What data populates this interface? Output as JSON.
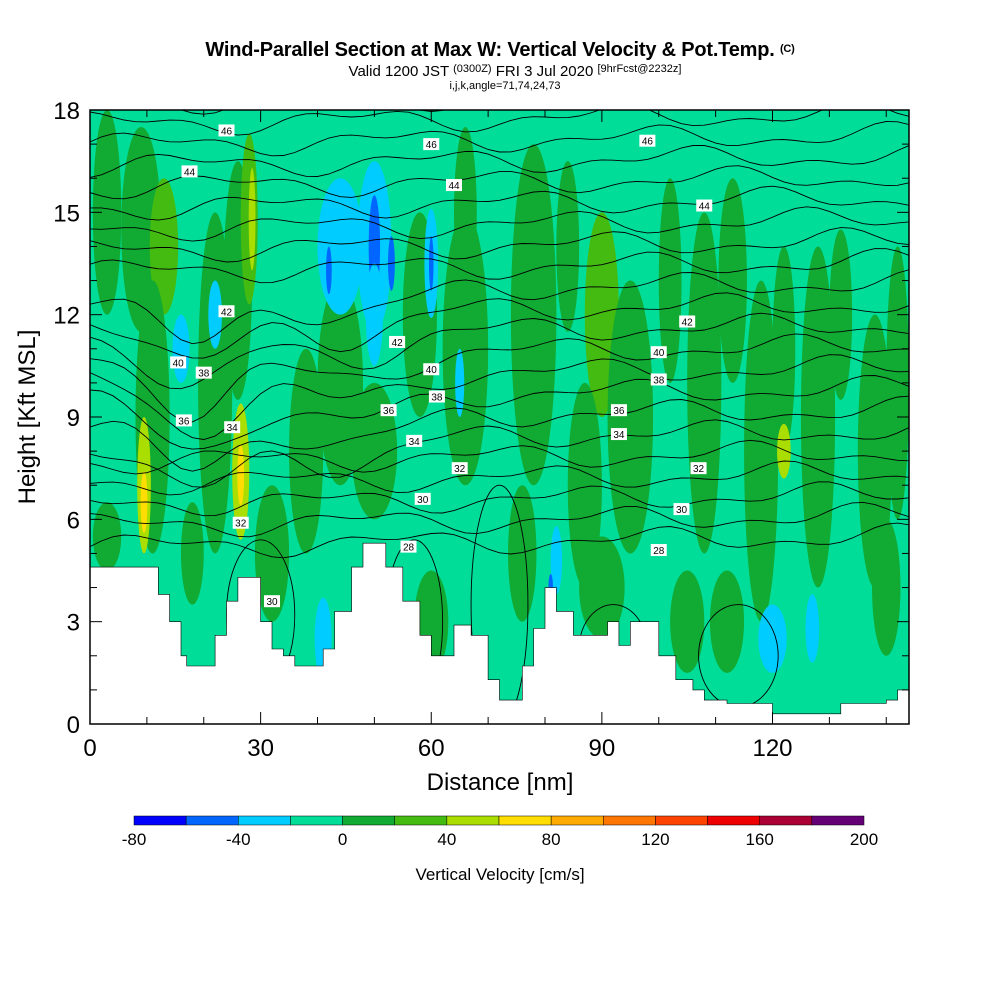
{
  "title": {
    "main": "Wind-Parallel Section at Max W: Vertical Velocity & Pot.Temp.",
    "copyright": "(C)",
    "valid_pre": "Valid 1200 JST",
    "valid_utc": "(0300Z)",
    "valid_date": "FRI 3 Jul 2020",
    "forecast": "[9hrFcst@2232z]",
    "params": "i,j,k,angle=71,74,24,73"
  },
  "chart_data": {
    "type": "heatmap",
    "xlabel": "Distance [nm]",
    "ylabel": "Height [Kft MSL]",
    "xlim": [
      0,
      144
    ],
    "ylim": [
      0,
      18
    ],
    "x_ticks": [
      0,
      30,
      60,
      90,
      120
    ],
    "y_ticks": [
      0,
      3,
      6,
      9,
      12,
      15,
      18
    ],
    "grid": false,
    "colorbar": {
      "label": "Vertical Velocity [cm/s]",
      "min": -80,
      "max": 200,
      "step": 20,
      "tick_labels": [
        -80,
        -40,
        0,
        40,
        80,
        120,
        160,
        200
      ],
      "colors": [
        "#0000ff",
        "#0066ff",
        "#00ccff",
        "#00dd99",
        "#11aa33",
        "#44bb11",
        "#aadd00",
        "#ffdd00",
        "#ffaa00",
        "#ff7700",
        "#ff4400",
        "#ee0000",
        "#aa0033",
        "#660077"
      ]
    },
    "terrain_kft": [
      [
        0,
        4.6
      ],
      [
        10,
        4.6
      ],
      [
        12,
        3.8
      ],
      [
        14,
        3.0
      ],
      [
        16,
        2.0
      ],
      [
        17,
        1.7
      ],
      [
        20,
        1.7
      ],
      [
        22,
        2.6
      ],
      [
        24,
        3.6
      ],
      [
        26,
        4.3
      ],
      [
        28,
        4.3
      ],
      [
        30,
        3.0
      ],
      [
        32,
        2.2
      ],
      [
        34,
        2.0
      ],
      [
        36,
        1.7
      ],
      [
        38,
        1.7
      ],
      [
        41,
        2.2
      ],
      [
        43,
        3.3
      ],
      [
        46,
        4.6
      ],
      [
        48,
        5.3
      ],
      [
        50,
        5.3
      ],
      [
        52,
        4.6
      ],
      [
        55,
        3.6
      ],
      [
        58,
        2.6
      ],
      [
        60,
        2.0
      ],
      [
        62,
        2.0
      ],
      [
        64,
        2.9
      ],
      [
        67,
        2.6
      ],
      [
        70,
        1.3
      ],
      [
        72,
        0.7
      ],
      [
        74,
        0.7
      ],
      [
        76,
        1.7
      ],
      [
        78,
        2.8
      ],
      [
        80,
        4.0
      ],
      [
        82,
        3.3
      ],
      [
        85,
        2.6
      ],
      [
        88,
        2.6
      ],
      [
        91,
        3.0
      ],
      [
        93,
        2.3
      ],
      [
        95,
        3.0
      ],
      [
        98,
        3.0
      ],
      [
        100,
        2.0
      ],
      [
        103,
        1.3
      ],
      [
        106,
        1.0
      ],
      [
        108,
        0.7
      ],
      [
        112,
        0.6
      ],
      [
        118,
        0.6
      ],
      [
        120,
        0.3
      ],
      [
        130,
        0.3
      ],
      [
        132,
        0.6
      ],
      [
        140,
        0.7
      ],
      [
        142,
        1.0
      ],
      [
        144,
        1.0
      ]
    ],
    "contours": {
      "name": "Pot.Temp.",
      "labels": [
        {
          "text": "46",
          "x": 24,
          "y": 17.4
        },
        {
          "text": "46",
          "x": 60,
          "y": 17.0
        },
        {
          "text": "46",
          "x": 98,
          "y": 17.1
        },
        {
          "text": "44",
          "x": 17.5,
          "y": 16.2
        },
        {
          "text": "44",
          "x": 64,
          "y": 15.8
        },
        {
          "text": "44",
          "x": 108,
          "y": 15.2
        },
        {
          "text": "42",
          "x": 24,
          "y": 12.1
        },
        {
          "text": "42",
          "x": 54,
          "y": 11.2
        },
        {
          "text": "42",
          "x": 105,
          "y": 11.8
        },
        {
          "text": "40",
          "x": 15.5,
          "y": 10.6
        },
        {
          "text": "40",
          "x": 60,
          "y": 10.4
        },
        {
          "text": "40",
          "x": 100,
          "y": 10.9
        },
        {
          "text": "38",
          "x": 20,
          "y": 10.3
        },
        {
          "text": "38",
          "x": 61,
          "y": 9.6
        },
        {
          "text": "38",
          "x": 100,
          "y": 10.1
        },
        {
          "text": "36",
          "x": 16.5,
          "y": 8.9
        },
        {
          "text": "36",
          "x": 52.5,
          "y": 9.2
        },
        {
          "text": "36",
          "x": 93,
          "y": 9.2
        },
        {
          "text": "34",
          "x": 25,
          "y": 8.7
        },
        {
          "text": "34",
          "x": 57,
          "y": 8.3
        },
        {
          "text": "34",
          "x": 93,
          "y": 8.5
        },
        {
          "text": "32",
          "x": 65,
          "y": 7.5
        },
        {
          "text": "32",
          "x": 107,
          "y": 7.5
        },
        {
          "text": "32",
          "x": 26.5,
          "y": 5.9
        },
        {
          "text": "30",
          "x": 58.5,
          "y": 6.6
        },
        {
          "text": "30",
          "x": 104,
          "y": 6.3
        },
        {
          "text": "30",
          "x": 32,
          "y": 3.6
        },
        {
          "text": "28",
          "x": 56,
          "y": 5.2
        },
        {
          "text": "28",
          "x": 100,
          "y": 5.1
        }
      ]
    }
  }
}
